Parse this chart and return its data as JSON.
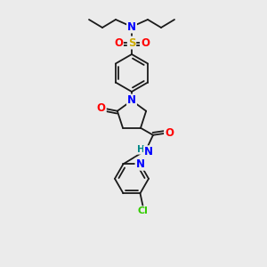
{
  "bg_color": "#ebebeb",
  "atom_colors": {
    "C": "#1a1a1a",
    "N": "#0000ff",
    "O": "#ff0000",
    "S": "#ccaa00",
    "Cl": "#33cc00",
    "H": "#008888"
  },
  "bond_color": "#1a1a1a",
  "figsize": [
    3.0,
    3.0
  ],
  "dpi": 100
}
